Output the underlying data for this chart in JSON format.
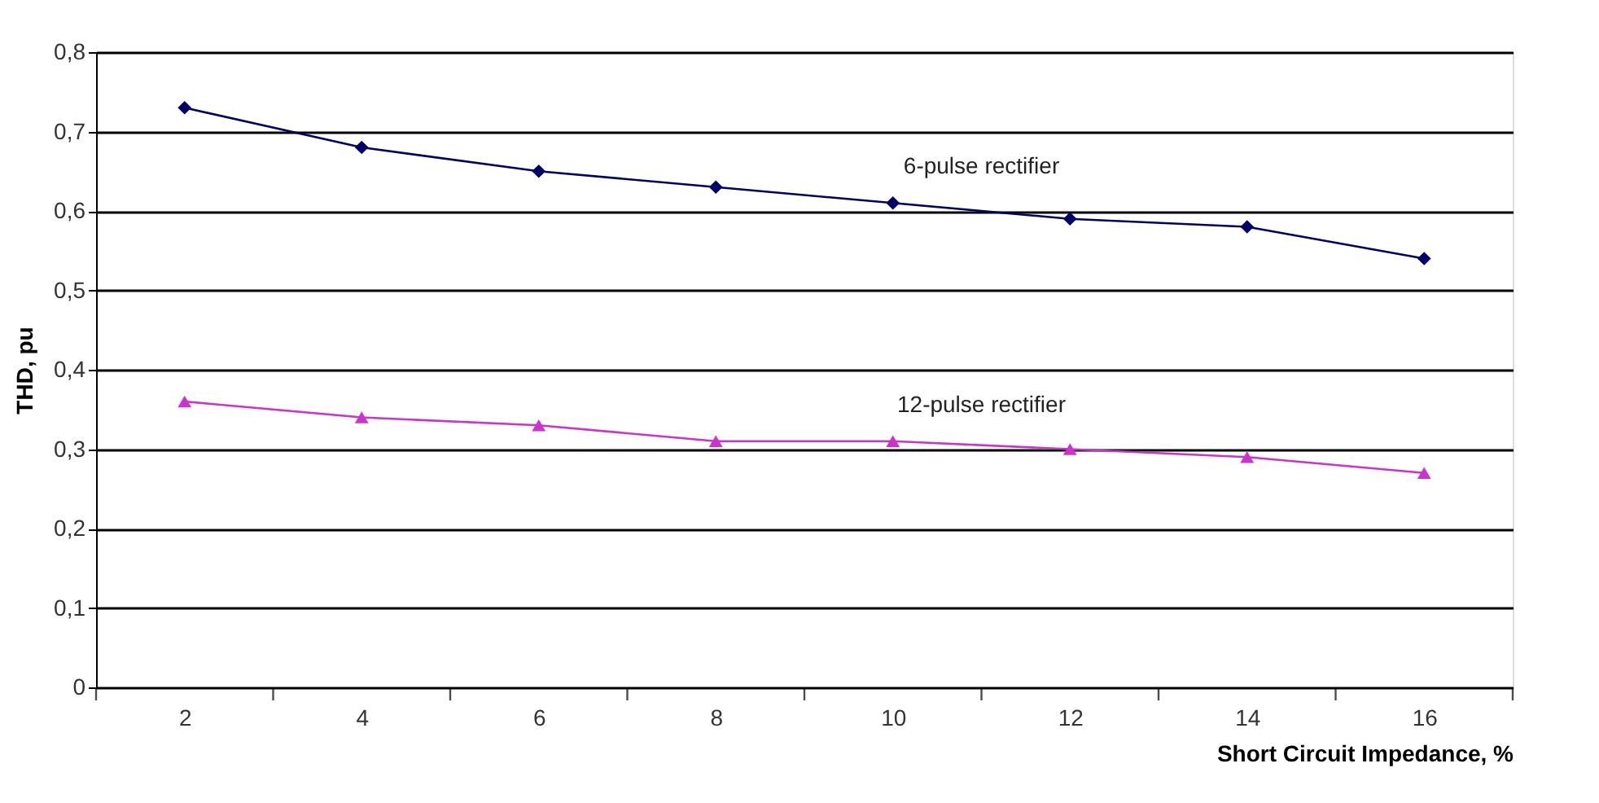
{
  "chart_data": {
    "type": "line",
    "xlabel": "Short Circuit Impedance, %",
    "ylabel": "THD, pu",
    "categories": [
      "2",
      "4",
      "6",
      "8",
      "10",
      "12",
      "14",
      "16"
    ],
    "ylim": [
      0,
      0.8
    ],
    "yticks": [
      {
        "value": 0,
        "label": "0"
      },
      {
        "value": 0.1,
        "label": "0,1"
      },
      {
        "value": 0.2,
        "label": "0,2"
      },
      {
        "value": 0.3,
        "label": "0,3"
      },
      {
        "value": 0.4,
        "label": "0,4"
      },
      {
        "value": 0.5,
        "label": "0,5"
      },
      {
        "value": 0.6,
        "label": "0,6"
      },
      {
        "value": 0.7,
        "label": "0,7"
      },
      {
        "value": 0.8,
        "label": "0,8"
      }
    ],
    "grid": "y",
    "legend": false,
    "series": [
      {
        "name": "6-pulse rectifier",
        "color": "#000066",
        "marker": "diamond",
        "line_style": "solid",
        "values": [
          0.73,
          0.68,
          0.65,
          0.63,
          0.61,
          0.59,
          0.58,
          0.54
        ]
      },
      {
        "name": "12-pulse rectifier",
        "color": "#cc33cc",
        "marker": "triangle",
        "line_style": "solid",
        "values": [
          0.36,
          0.34,
          0.33,
          0.31,
          0.31,
          0.3,
          0.29,
          0.27
        ]
      }
    ]
  }
}
